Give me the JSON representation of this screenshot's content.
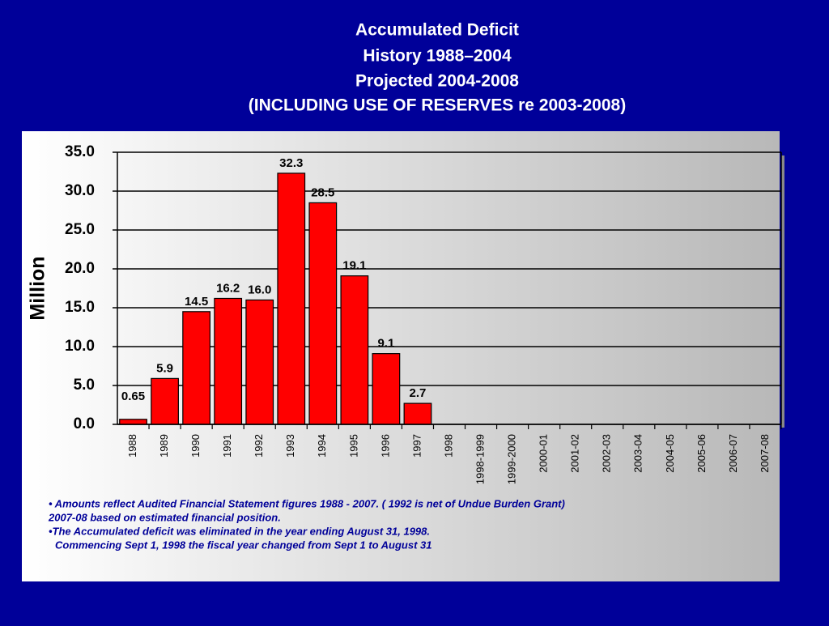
{
  "chart_data": {
    "type": "bar",
    "title": [
      "Accumulated Deficit",
      "History 1988–2004",
      "Projected 2004-2008",
      "(INCLUDING USE OF RESERVES re 2003-2008)"
    ],
    "y_label": "Million",
    "categories": [
      "1988",
      "1989",
      "1990",
      "1991",
      "1992",
      "1993",
      "1994",
      "1995",
      "1996",
      "1997",
      "1998",
      "1998-1999",
      "1999-2000",
      "2000-01",
      "2001-02",
      "2002-03",
      "2003-04",
      "2004-05",
      "2005-06",
      "2006-07",
      "2007-08"
    ],
    "values": [
      0.65,
      5.9,
      14.5,
      16.2,
      16.0,
      32.3,
      28.5,
      19.1,
      9.1,
      2.7,
      null,
      null,
      null,
      null,
      null,
      null,
      null,
      null,
      null,
      null,
      null
    ],
    "value_labels": [
      "0.65",
      "5.9",
      "14.5",
      "16.2",
      "16.0",
      "32.3",
      "28.5",
      "19.1",
      "9.1",
      "2.7",
      null,
      null,
      null,
      null,
      null,
      null,
      null,
      null,
      null,
      null,
      null
    ],
    "color": "#ff0000",
    "ylim": [
      0,
      35
    ],
    "yticks": [
      {
        "value": 0,
        "label": "0.0"
      },
      {
        "value": 5,
        "label": "5.0"
      },
      {
        "value": 10,
        "label": "10.0"
      },
      {
        "value": 15,
        "label": "15.0"
      },
      {
        "value": 20,
        "label": "20.0"
      },
      {
        "value": 25,
        "label": "25.0"
      },
      {
        "value": 30,
        "label": "30.0"
      },
      {
        "value": 35,
        "label": "35.0"
      }
    ],
    "grid": true,
    "notes": [
      "• Amounts reflect Audited Financial Statement figures 1988 - 2007. ( 1992 is net of Undue Burden Grant)",
      "2007-08 based on estimated financial position.",
      "•The Accumulated deficit was eliminated in the year ending August 31, 1998.",
      "Commencing Sept 1, 1998 the fiscal year changed from Sept 1 to August 31"
    ]
  }
}
